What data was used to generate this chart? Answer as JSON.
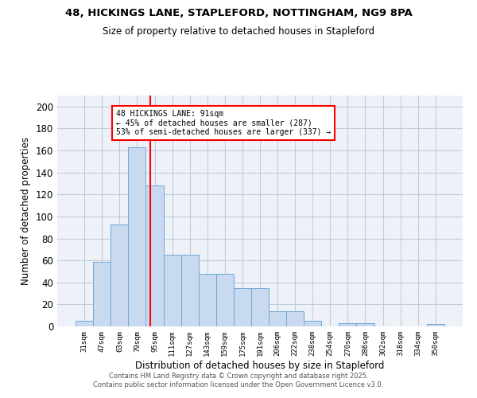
{
  "title_line1": "48, HICKINGS LANE, STAPLEFORD, NOTTINGHAM, NG9 8PA",
  "title_line2": "Size of property relative to detached houses in Stapleford",
  "xlabel": "Distribution of detached houses by size in Stapleford",
  "ylabel": "Number of detached properties",
  "bar_labels": [
    "31sqm",
    "47sqm",
    "63sqm",
    "79sqm",
    "95sqm",
    "111sqm",
    "127sqm",
    "143sqm",
    "159sqm",
    "175sqm",
    "191sqm",
    "206sqm",
    "222sqm",
    "238sqm",
    "254sqm",
    "270sqm",
    "286sqm",
    "302sqm",
    "318sqm",
    "334sqm",
    "350sqm"
  ],
  "bar_heights": [
    5,
    59,
    93,
    163,
    128,
    65,
    65,
    48,
    48,
    35,
    35,
    14,
    14,
    5,
    0,
    3,
    3,
    0,
    0,
    0,
    2
  ],
  "bar_color": "#c9daf0",
  "bar_edge_color": "#6fa8d8",
  "red_line_x": 3.75,
  "annotation_text": "48 HICKINGS LANE: 91sqm\n← 45% of detached houses are smaller (287)\n53% of semi-detached houses are larger (337) →",
  "annotation_box_color": "white",
  "annotation_box_edge": "red",
  "ylim": [
    0,
    210
  ],
  "yticks": [
    0,
    20,
    40,
    60,
    80,
    100,
    120,
    140,
    160,
    180,
    200
  ],
  "grid_color": "#c0ccda",
  "background_color": "#eef2f8",
  "footer_line1": "Contains HM Land Registry data © Crown copyright and database right 2025.",
  "footer_line2": "Contains public sector information licensed under the Open Government Licence v3.0."
}
